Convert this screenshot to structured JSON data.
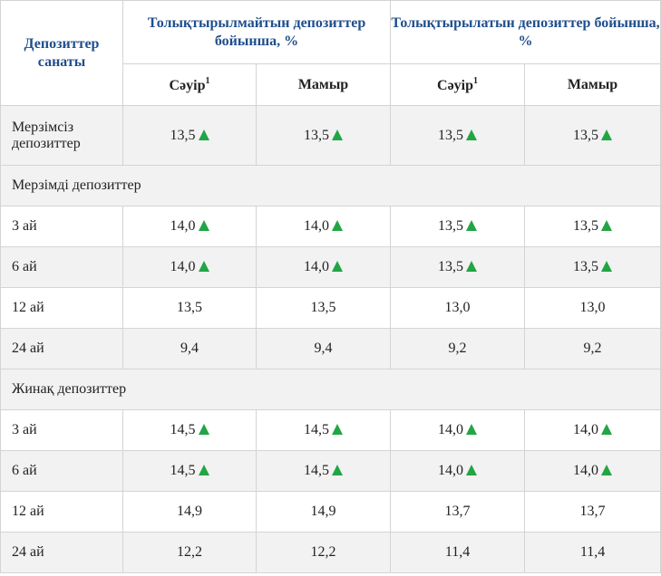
{
  "header": {
    "category": "Депозиттер санаты",
    "group_nonreplenish": "Толықтырылмайтын депозиттер бойынша, %",
    "group_replenish": "Толықтырылатын депозиттер бойынша, %",
    "month_april": "Сәуір",
    "month_april_footnote": "1",
    "month_may": "Мамыр"
  },
  "colors": {
    "header_text": "#1f4e8c",
    "arrow_up": "#22a545",
    "row_alt": "#f2f2f2",
    "border": "#d4d4d4"
  },
  "icons": {
    "increase": "triangle-up-icon"
  },
  "rows": [
    {
      "label": "Мерзімсіз депозиттер",
      "values": [
        "13,5",
        "13,5",
        "13,5",
        "13,5"
      ],
      "up": true
    },
    {
      "section": "Мерзімді депозиттер"
    },
    {
      "label": "3 ай",
      "values": [
        "14,0",
        "14,0",
        "13,5",
        "13,5"
      ],
      "up": true
    },
    {
      "label": "6 ай",
      "values": [
        "14,0",
        "14,0",
        "13,5",
        "13,5"
      ],
      "up": true
    },
    {
      "label": "12 ай",
      "values": [
        "13,5",
        "13,5",
        "13,0",
        "13,0"
      ],
      "up": false
    },
    {
      "label": "24 ай",
      "values": [
        "9,4",
        "9,4",
        "9,2",
        "9,2"
      ],
      "up": false
    },
    {
      "section": "Жинақ депозиттер"
    },
    {
      "label": "3 ай",
      "values": [
        "14,5",
        "14,5",
        "14,0",
        "14,0"
      ],
      "up": true
    },
    {
      "label": "6 ай",
      "values": [
        "14,5",
        "14,5",
        "14,0",
        "14,0"
      ],
      "up": true
    },
    {
      "label": "12 ай",
      "values": [
        "14,9",
        "14,9",
        "13,7",
        "13,7"
      ],
      "up": false
    },
    {
      "label": "24 ай",
      "values": [
        "12,2",
        "12,2",
        "11,4",
        "11,4"
      ],
      "up": false
    }
  ]
}
